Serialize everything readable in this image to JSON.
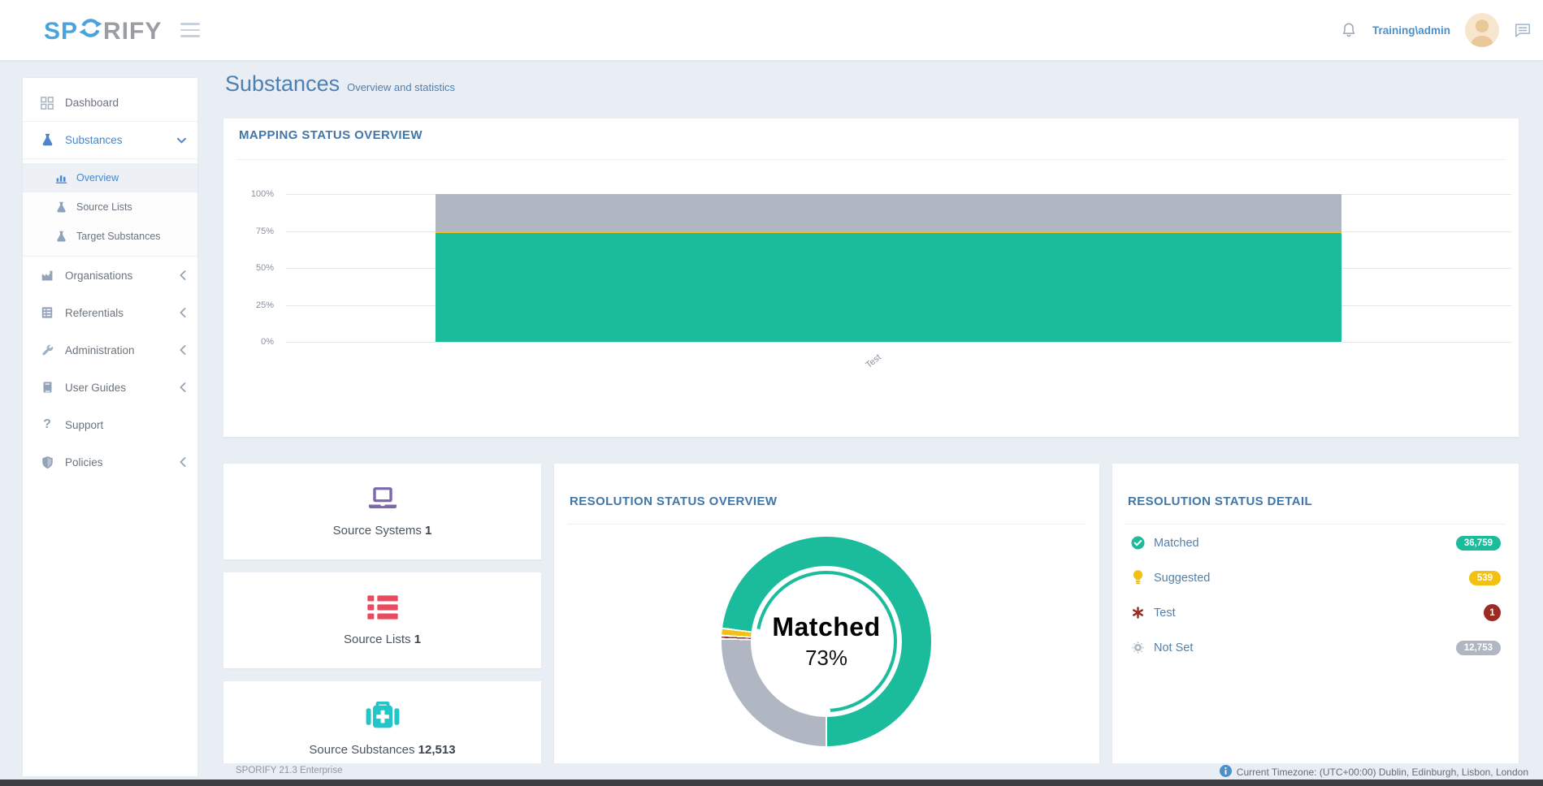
{
  "header": {
    "logo": {
      "primary": "SP",
      "rest": "RIFY"
    },
    "user_name": "Training\\admin",
    "icons": [
      "hamburger-icon",
      "bell-icon",
      "avatar",
      "chat-icon"
    ]
  },
  "page": {
    "title": "Substances",
    "subtitle": "Overview and statistics"
  },
  "sidebar": {
    "items": [
      {
        "label": "Dashboard",
        "icon": "grid-icon"
      },
      {
        "label": "Substances",
        "icon": "flask-icon",
        "expanded": true,
        "active": true
      },
      {
        "label": "Overview",
        "icon": "bar-chart-icon",
        "sub": true,
        "active": true
      },
      {
        "label": "Source Lists",
        "icon": "flask-icon",
        "sub": true
      },
      {
        "label": "Target Substances",
        "icon": "flask-icon",
        "sub": true
      },
      {
        "label": "Organisations",
        "icon": "factory-icon",
        "collapsible": true
      },
      {
        "label": "Referentials",
        "icon": "list-icon",
        "collapsible": true
      },
      {
        "label": "Administration",
        "icon": "wrench-icon",
        "collapsible": true
      },
      {
        "label": "User Guides",
        "icon": "book-icon",
        "collapsible": true
      },
      {
        "label": "Support",
        "icon": "question-icon"
      },
      {
        "label": "Policies",
        "icon": "shield-icon",
        "collapsible": true
      }
    ]
  },
  "cards": {
    "mapping": {
      "title": "MAPPING STATUS OVERVIEW"
    },
    "resolution_overview": {
      "title": "RESOLUTION STATUS OVERVIEW"
    },
    "resolution_detail": {
      "title": "RESOLUTION STATUS DETAIL",
      "rows": [
        {
          "label": "Matched",
          "value": "36,759",
          "icon": "check-circle-icon",
          "color": "#1bbc9c"
        },
        {
          "label": "Suggested",
          "value": "539",
          "icon": "lightbulb-icon",
          "color": "#f2c112"
        },
        {
          "label": "Test",
          "value": "1",
          "icon": "asterisk-icon",
          "color": "#9b2c24"
        },
        {
          "label": "Not Set",
          "value": "12,753",
          "icon": "gear-icon",
          "color": "#b0b7c2"
        }
      ]
    },
    "stats": [
      {
        "label": "Source Systems",
        "value": "1",
        "icon": "laptop-icon",
        "icon_color": "#7d68ae"
      },
      {
        "label": "Source Lists",
        "value": "1",
        "icon": "red-list-icon",
        "icon_color": "#e84b5f"
      },
      {
        "label": "Source Substances",
        "value": "12,513",
        "icon": "first-aid-icon",
        "icon_color": "#23c6c8"
      }
    ]
  },
  "chart_data": [
    {
      "type": "bar",
      "stacked": true,
      "title": "MAPPING STATUS OVERVIEW",
      "categories": [
        "Test"
      ],
      "series": [
        {
          "name": "Matched",
          "values": [
            73.44
          ],
          "color": "#1bbc9c"
        },
        {
          "name": "Suggested",
          "values": [
            1.08
          ],
          "color": "#f2c112"
        },
        {
          "name": "Test",
          "values": [
            0.002
          ],
          "color": "#9b2c24"
        },
        {
          "name": "Not Set",
          "values": [
            25.48
          ],
          "color": "#b0b7c2"
        }
      ],
      "xlabel": "",
      "ylabel": "",
      "yticks": [
        "0%",
        "25%",
        "50%",
        "75%",
        "100%"
      ],
      "ylim": [
        0,
        100
      ],
      "grid": true,
      "legend": false
    },
    {
      "type": "pie",
      "donut": true,
      "title": "RESOLUTION STATUS OVERVIEW",
      "slices": [
        {
          "label": "Matched",
          "value": 36759,
          "pct": 73.4,
          "arc_pct": 73.0,
          "color": "#1bbc9c"
        },
        {
          "label": "Suggested",
          "value": 539,
          "pct": 1.1,
          "arc_pct": 1.1,
          "color": "#f2c112"
        },
        {
          "label": "Test",
          "value": 1,
          "pct": 0.0,
          "arc_pct": 0.5,
          "color": "#9b2c24"
        },
        {
          "label": "Not Set",
          "value": 12753,
          "pct": 25.5,
          "arc_pct": 25.4,
          "color": "#b0b7c2"
        }
      ],
      "center": {
        "label": "Matched",
        "value": "73%"
      },
      "legend_position": "none"
    }
  ],
  "footer": {
    "left": "SPORIFY 21.3 Enterprise",
    "right": "Current Timezone: (UTC+00:00) Dublin, Edinburgh, Lisbon, London"
  },
  "palette": {
    "green": "#1bbc9c",
    "yellow": "#f2c112",
    "red": "#9b2c24",
    "gray": "#b0b7c2",
    "accent_blue": "#4077a8",
    "logo_blue": "#4aa3dd",
    "page_bg": "#e9edf4"
  }
}
